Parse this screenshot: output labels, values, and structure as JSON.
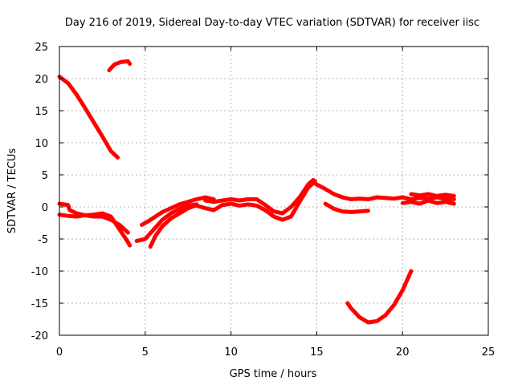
{
  "chart_data": {
    "type": "scatter",
    "title": "Day 216 of 2019, Sidereal Day-to-day VTEC variation (SDTVAR) for receiver iisc",
    "xlabel": "GPS time / hours",
    "ylabel": "SDTVAR / TECUs",
    "xlim": [
      0,
      25
    ],
    "ylim": [
      -20,
      25
    ],
    "xticks": [
      "0",
      "5",
      "10",
      "15",
      "20",
      "25"
    ],
    "yticks": [
      "25",
      "20",
      "15",
      "10",
      "5",
      "0",
      "-5",
      "-10",
      "-15",
      "-20"
    ],
    "grid": true,
    "legend": "none",
    "color": "#ff0000",
    "series": [
      {
        "name": "track-a-upper-decline",
        "points": [
          [
            0.0,
            20.3
          ],
          [
            0.5,
            19.3
          ],
          [
            1.0,
            17.5
          ],
          [
            1.5,
            15.4
          ],
          [
            2.0,
            13.2
          ],
          [
            2.5,
            11.0
          ],
          [
            3.0,
            8.7
          ],
          [
            3.4,
            7.7
          ]
        ]
      },
      {
        "name": "track-b-upper-short",
        "points": [
          [
            2.9,
            21.3
          ],
          [
            3.2,
            22.2
          ],
          [
            3.6,
            22.6
          ],
          [
            4.0,
            22.7
          ],
          [
            4.1,
            22.3
          ]
        ]
      },
      {
        "name": "track-c-early-near-zero",
        "points": [
          [
            0.0,
            0.5
          ],
          [
            0.5,
            0.3
          ],
          [
            0.6,
            -0.5
          ],
          [
            1.0,
            -1.0
          ],
          [
            1.5,
            -1.3
          ],
          [
            2.0,
            -1.5
          ],
          [
            2.5,
            -1.5
          ],
          [
            3.0,
            -2.0
          ],
          [
            3.5,
            -2.8
          ],
          [
            4.0,
            -4.0
          ]
        ]
      },
      {
        "name": "track-d-early-dip",
        "points": [
          [
            0.0,
            -1.2
          ],
          [
            0.5,
            -1.4
          ],
          [
            1.0,
            -1.5
          ],
          [
            1.5,
            -1.3
          ],
          [
            2.0,
            -1.2
          ],
          [
            2.5,
            -1.0
          ],
          [
            3.0,
            -1.5
          ],
          [
            3.5,
            -3.5
          ],
          [
            4.0,
            -5.5
          ],
          [
            4.1,
            -6.0
          ]
        ]
      },
      {
        "name": "track-e-morning-rise",
        "points": [
          [
            4.5,
            -5.3
          ],
          [
            5.0,
            -5.0
          ],
          [
            5.5,
            -3.5
          ],
          [
            6.0,
            -2.0
          ],
          [
            6.5,
            -1.0
          ],
          [
            7.0,
            -0.3
          ],
          [
            7.5,
            0.2
          ],
          [
            8.0,
            0.4
          ]
        ]
      },
      {
        "name": "track-f-morning-low",
        "points": [
          [
            5.3,
            -6.2
          ],
          [
            5.6,
            -4.5
          ],
          [
            6.0,
            -3.0
          ],
          [
            6.5,
            -1.8
          ],
          [
            7.0,
            -1.0
          ],
          [
            7.5,
            -0.2
          ],
          [
            8.0,
            0.3
          ]
        ]
      },
      {
        "name": "track-g-morning-upper",
        "points": [
          [
            4.8,
            -2.8
          ],
          [
            5.2,
            -2.2
          ],
          [
            5.6,
            -1.5
          ],
          [
            6.0,
            -0.8
          ],
          [
            6.5,
            -0.2
          ],
          [
            7.0,
            0.4
          ],
          [
            7.5,
            0.8
          ],
          [
            8.0,
            1.2
          ],
          [
            8.5,
            1.5
          ],
          [
            9.0,
            1.2
          ]
        ]
      },
      {
        "name": "track-h-midday-upper",
        "points": [
          [
            8.5,
            1.0
          ],
          [
            9.0,
            0.8
          ],
          [
            9.5,
            1.0
          ],
          [
            10.0,
            1.2
          ],
          [
            10.5,
            1.0
          ],
          [
            11.0,
            1.2
          ],
          [
            11.5,
            1.2
          ],
          [
            12.0,
            0.3
          ],
          [
            12.5,
            -0.7
          ],
          [
            13.0,
            -1.0
          ],
          [
            13.5,
            0.0
          ],
          [
            14.0,
            1.5
          ],
          [
            14.5,
            3.5
          ],
          [
            14.8,
            4.2
          ]
        ]
      },
      {
        "name": "track-i-midday-lower",
        "points": [
          [
            8.0,
            0.2
          ],
          [
            8.5,
            -0.2
          ],
          [
            9.0,
            -0.5
          ],
          [
            9.5,
            0.3
          ],
          [
            10.0,
            0.5
          ],
          [
            10.5,
            0.2
          ],
          [
            11.0,
            0.4
          ],
          [
            11.5,
            0.2
          ],
          [
            12.0,
            -0.5
          ],
          [
            12.5,
            -1.5
          ],
          [
            13.0,
            -2.0
          ],
          [
            13.5,
            -1.5
          ],
          [
            14.0,
            0.8
          ],
          [
            14.5,
            3.0
          ],
          [
            14.9,
            4.0
          ]
        ]
      },
      {
        "name": "track-j-afternoon-decay",
        "points": [
          [
            14.7,
            4.0
          ],
          [
            15.0,
            3.5
          ],
          [
            15.5,
            2.8
          ],
          [
            16.0,
            2.0
          ],
          [
            16.5,
            1.5
          ],
          [
            17.0,
            1.2
          ],
          [
            17.5,
            1.3
          ],
          [
            18.0,
            1.2
          ],
          [
            18.5,
            1.5
          ],
          [
            19.0,
            1.4
          ],
          [
            19.5,
            1.3
          ],
          [
            20.0,
            1.5
          ],
          [
            20.5,
            1.2
          ],
          [
            21.0,
            1.4
          ],
          [
            21.5,
            1.3
          ],
          [
            22.0,
            1.5
          ],
          [
            22.5,
            1.3
          ],
          [
            23.0,
            1.2
          ]
        ]
      },
      {
        "name": "track-k-afternoon-side",
        "points": [
          [
            15.5,
            0.5
          ],
          [
            16.0,
            -0.3
          ],
          [
            16.5,
            -0.7
          ],
          [
            17.0,
            -0.8
          ],
          [
            17.5,
            -0.7
          ],
          [
            18.0,
            -0.6
          ]
        ]
      },
      {
        "name": "track-l-evening-lower",
        "points": [
          [
            20.0,
            0.6
          ],
          [
            20.5,
            0.8
          ],
          [
            21.0,
            0.5
          ],
          [
            21.5,
            1.0
          ],
          [
            22.0,
            0.6
          ],
          [
            22.5,
            0.8
          ],
          [
            23.0,
            0.5
          ]
        ]
      },
      {
        "name": "track-m-evening-upper",
        "points": [
          [
            20.5,
            2.0
          ],
          [
            21.0,
            1.8
          ],
          [
            21.5,
            2.0
          ],
          [
            22.0,
            1.7
          ],
          [
            22.5,
            1.9
          ],
          [
            23.0,
            1.7
          ]
        ]
      },
      {
        "name": "track-n-evening-trough",
        "points": [
          [
            16.8,
            -15.0
          ],
          [
            17.0,
            -15.8
          ],
          [
            17.5,
            -17.2
          ],
          [
            18.0,
            -18.0
          ],
          [
            18.5,
            -17.8
          ],
          [
            19.0,
            -16.9
          ],
          [
            19.5,
            -15.3
          ],
          [
            20.0,
            -13.0
          ],
          [
            20.5,
            -10.0
          ]
        ]
      }
    ]
  }
}
